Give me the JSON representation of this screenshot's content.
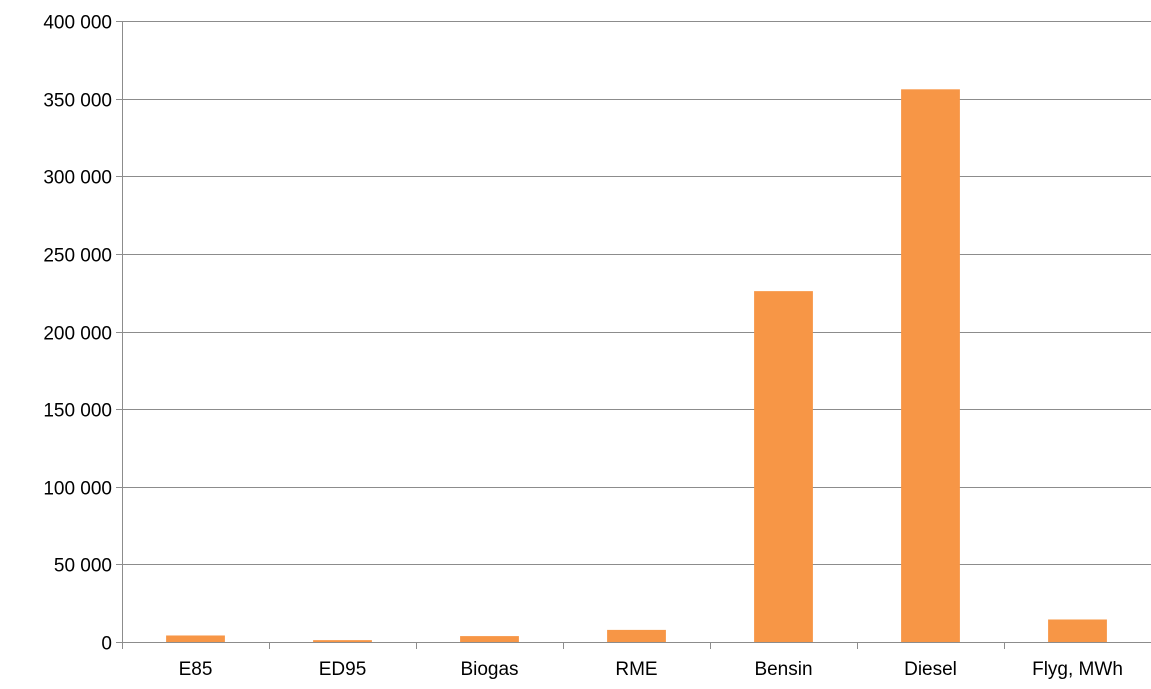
{
  "chart_data": {
    "type": "bar",
    "title": "",
    "xlabel": "",
    "ylabel": "",
    "categories": [
      "E85",
      "ED95",
      "Biogas",
      "RME",
      "Bensin",
      "Diesel",
      "Flyg, MWh"
    ],
    "series": [
      {
        "values": [
          4200,
          1200,
          3800,
          7800,
          226000,
          356000,
          14500
        ]
      }
    ],
    "ylim": [
      0,
      400000
    ],
    "yticks": [
      0,
      50000,
      100000,
      150000,
      200000,
      250000,
      300000,
      350000,
      400000
    ],
    "ytick_labels": [
      "0",
      "50 000",
      "100 000",
      "150 000",
      "200 000",
      "250 000",
      "300 000",
      "350 000",
      "400 000"
    ],
    "grid": true,
    "legend": "none",
    "colors": {
      "bar": "#f79646",
      "grid": "#8c8c8c",
      "axis": "#8c8c8c",
      "text": "#000000"
    }
  }
}
